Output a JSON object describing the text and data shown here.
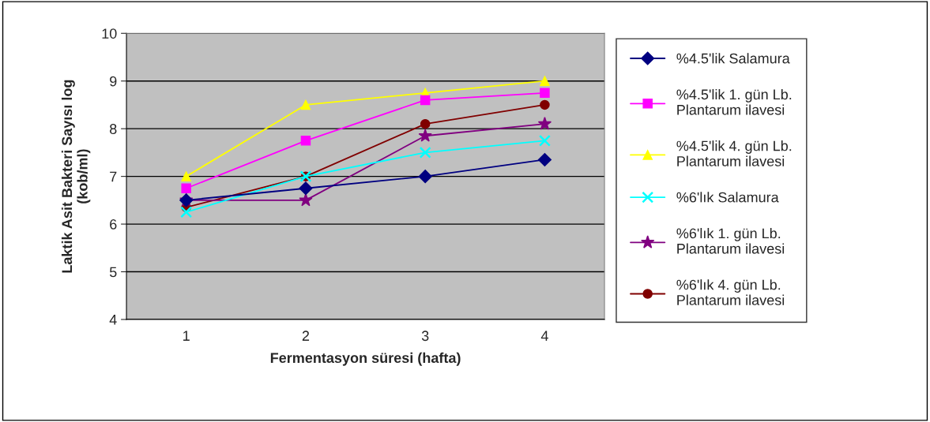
{
  "chart_data": {
    "type": "line",
    "xlabel": "Fermentasyon süresi (hafta)",
    "ylabel": "Laktik Asit Bakteri Sayısı log (kob/ml)",
    "categories": [
      "1",
      "2",
      "3",
      "4"
    ],
    "ylim": [
      4,
      10
    ],
    "yticks": [
      4,
      5,
      6,
      7,
      8,
      9,
      10
    ],
    "grid": "y",
    "legend": "right",
    "series": [
      {
        "name": "%4.5'lik Salamura",
        "color": "#000080",
        "marker": "diamond",
        "values": [
          6.5,
          6.75,
          7.0,
          7.35
        ]
      },
      {
        "name": "%4.5'lik 1. gün Lb. Plantarum ilavesi",
        "color": "#ff00ff",
        "marker": "square",
        "values": [
          6.75,
          7.75,
          8.6,
          8.75
        ]
      },
      {
        "name": "%4.5'lik 4. gün Lb. Plantarum ilavesi",
        "color": "#ffff00",
        "marker": "triangle",
        "values": [
          7.0,
          8.5,
          8.75,
          9.0
        ]
      },
      {
        "name": "%6'lık Salamura",
        "color": "#00ffff",
        "marker": "cross",
        "values": [
          6.25,
          7.0,
          7.5,
          7.75
        ]
      },
      {
        "name": "%6'lık 1. gün Lb. Plantarum ilavesi",
        "color": "#800080",
        "marker": "star",
        "values": [
          6.5,
          6.5,
          7.85,
          8.1
        ]
      },
      {
        "name": "%6'lık 4. gün Lb. Plantarum ilavesi",
        "color": "#800000",
        "marker": "circle",
        "values": [
          6.35,
          7.0,
          8.1,
          8.5
        ]
      }
    ]
  }
}
